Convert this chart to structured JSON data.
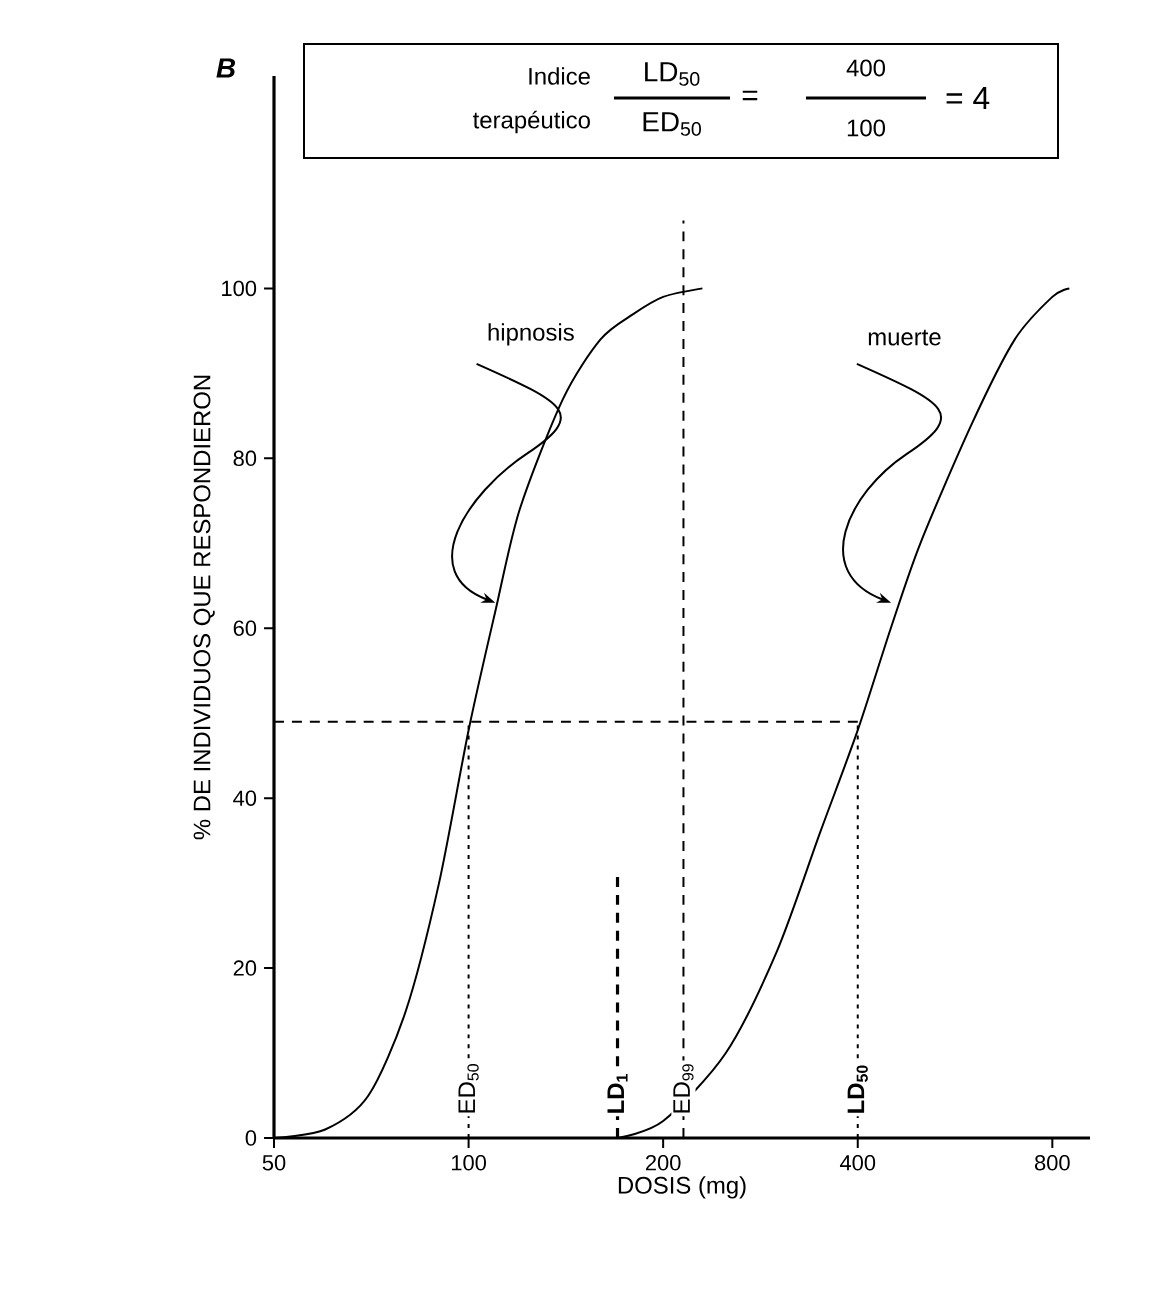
{
  "chart_data": {
    "type": "line",
    "xlabel": "DOSIS (mg)",
    "ylabel": "% DE INDIVIDUOS QUE RESPONDIERON",
    "log": "x",
    "xlim": [
      50,
      915
    ],
    "xticks": [
      50,
      100,
      200,
      400,
      800
    ],
    "ylim": [
      0,
      125
    ],
    "yticks": [
      0,
      20,
      40,
      60,
      80,
      100
    ],
    "grid": false,
    "line_style": "solid",
    "series": [
      {
        "name": "hipnosis",
        "color": "#000000",
        "x": [
          50,
          60,
          70,
          80,
          90,
          100,
          110,
          120,
          140,
          160,
          180,
          200,
          230
        ],
        "values": [
          0,
          1,
          5,
          15,
          30,
          48,
          62,
          74,
          87,
          94,
          97,
          99,
          100
        ]
      },
      {
        "name": "muerte",
        "color": "#000000",
        "x": [
          170,
          200,
          250,
          300,
          350,
          400,
          450,
          500,
          600,
          700,
          800,
          850
        ],
        "values": [
          0,
          2,
          10,
          22,
          36,
          48,
          60,
          70,
          84,
          94,
          99,
          100
        ]
      }
    ],
    "ref_lines": [
      {
        "axis": "y",
        "value": 49,
        "color": "#000000",
        "line_style": "dashed"
      },
      {
        "axis": "x",
        "value": 100,
        "label": "ED$_{50}$",
        "color": "#000000",
        "line_style": "dotted"
      },
      {
        "axis": "x",
        "value": 170,
        "label": "**LD$_{1}$**",
        "color": "#000000",
        "line_style": "dashed"
      },
      {
        "axis": "x",
        "value": 215,
        "label": "ED$_{99}$",
        "color": "#000000",
        "line_style": "dashed"
      },
      {
        "axis": "x",
        "value": 400,
        "label": "**LD$_{50}$**",
        "color": "#000000",
        "line_style": "dotted"
      }
    ],
    "annotations": [
      "B",
      "Indice",
      "terapéutico",
      "LD$_{50}$",
      "ED$_{50}$",
      "=",
      "400",
      "100",
      "= 4"
    ]
  }
}
